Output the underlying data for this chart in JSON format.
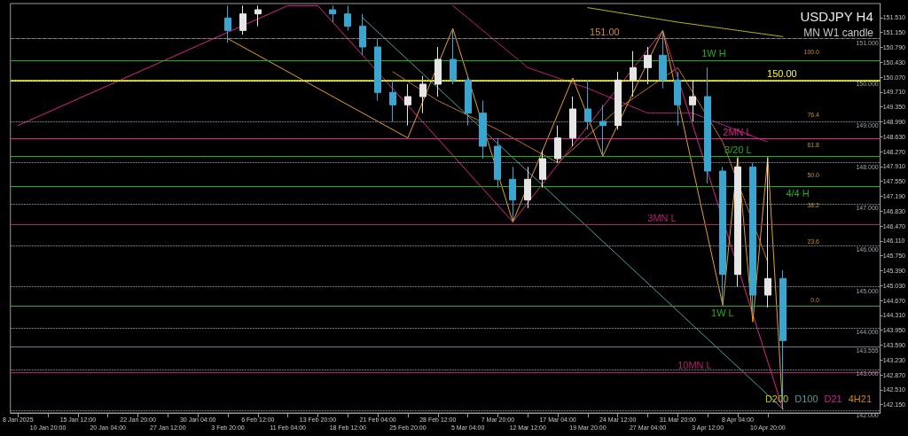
{
  "chart_data": {
    "type": "candlestick",
    "title": "USDJPY H4",
    "subtitle": "MN W1 candle",
    "categories": [
      "8 Jan 2025",
      null,
      "10 Jan 20:00",
      null,
      "15 Jan 12:00",
      null,
      "20 Jan 04:00",
      null,
      "22 Jan 20:00",
      null,
      "27 Jan 12:00",
      null,
      "30 Jan 04:00",
      null,
      "3 Feb 20:00",
      null,
      "6 Feb 12:00",
      null,
      "11 Feb 04:00",
      null,
      "13 Feb 20:00",
      null,
      "18 Feb 12:00",
      null,
      "21 Feb 04:00",
      null,
      "25 Feb 20:00",
      null,
      "28 Feb 12:00",
      null,
      "5 Mar 04:00",
      null,
      "7 Mar 20:00",
      null,
      "12 Mar 12:00",
      null,
      "17 Mar 04:00",
      null,
      "19 Mar 20:00",
      null,
      "24 Mar 12:00",
      null,
      "27 Mar 04:00",
      null,
      "31 Mar 20:00",
      null,
      "3 Apr 12:00",
      null,
      "8 Apr 04:00",
      null,
      "10 Apr 20:00",
      null,
      null,
      null,
      null,
      null,
      null,
      null
    ],
    "ohlc": [
      null,
      null,
      null,
      null,
      null,
      null,
      null,
      null,
      null,
      null,
      null,
      null,
      null,
      null,
      [
        151.5,
        151.8,
        150.9,
        151.2
      ],
      [
        151.2,
        151.8,
        151.1,
        151.6
      ],
      [
        151.6,
        151.8,
        151.3,
        151.7
      ],
      null,
      null,
      null,
      null,
      [
        151.7,
        151.8,
        151.4,
        151.6
      ],
      [
        151.6,
        151.8,
        151.2,
        151.3
      ],
      [
        151.3,
        151.6,
        150.6,
        150.8
      ],
      [
        150.8,
        151.0,
        149.5,
        149.7
      ],
      [
        149.7,
        150.0,
        149.0,
        149.4
      ],
      [
        149.4,
        149.9,
        148.9,
        149.6
      ],
      [
        149.6,
        150.1,
        149.2,
        149.9
      ],
      [
        149.9,
        150.8,
        149.6,
        150.5
      ],
      [
        150.5,
        151.2,
        149.9,
        150.0
      ],
      [
        150.0,
        150.1,
        148.9,
        149.2
      ],
      [
        149.2,
        149.5,
        148.1,
        148.4
      ],
      [
        148.4,
        148.6,
        147.4,
        147.6
      ],
      [
        147.6,
        147.9,
        146.6,
        147.1
      ],
      [
        147.1,
        147.9,
        146.9,
        147.6
      ],
      [
        147.6,
        148.3,
        147.4,
        148.1
      ],
      [
        148.1,
        148.9,
        148.0,
        148.6
      ],
      [
        148.6,
        149.6,
        148.4,
        149.3
      ],
      [
        149.3,
        150.0,
        148.8,
        149.0
      ],
      [
        149.0,
        149.4,
        148.2,
        148.9
      ],
      [
        148.9,
        150.2,
        148.8,
        150.0
      ],
      [
        150.0,
        150.7,
        149.6,
        150.3
      ],
      [
        150.3,
        150.8,
        149.9,
        150.6
      ],
      [
        150.6,
        151.2,
        149.8,
        150.0
      ],
      [
        150.0,
        150.2,
        148.9,
        149.4
      ],
      [
        149.4,
        150.0,
        149.0,
        149.6
      ],
      [
        149.6,
        150.3,
        147.5,
        147.8
      ],
      [
        147.8,
        147.9,
        144.6,
        145.3
      ],
      [
        145.3,
        148.1,
        145.0,
        147.9
      ],
      [
        147.9,
        148.0,
        144.4,
        144.8
      ],
      [
        144.8,
        148.1,
        144.5,
        145.2
      ],
      [
        145.2,
        145.4,
        142.1,
        143.7
      ],
      null,
      null,
      null,
      null,
      null,
      null
    ],
    "colors": [
      null,
      null,
      null,
      null,
      null,
      null,
      null,
      null,
      null,
      null,
      null,
      null,
      null,
      null,
      "#3aa6d0",
      "#e6e6e6",
      "#e6e6e6",
      null,
      null,
      null,
      null,
      "#3aa6d0",
      "#3aa6d0",
      "#3aa6d0",
      "#3aa6d0",
      "#3aa6d0",
      "#e6e6e6",
      "#e6e6e6",
      "#e6e6e6",
      "#3aa6d0",
      "#3aa6d0",
      "#3aa6d0",
      "#3aa6d0",
      "#3aa6d0",
      "#e6e6e6",
      "#e6e6e6",
      "#e6e6e6",
      "#e6e6e6",
      "#3aa6d0",
      "#3aa6d0",
      "#e6e6e6",
      "#e6e6e6",
      "#e6e6e6",
      "#3aa6d0",
      "#3aa6d0",
      "#e6e6e6",
      "#3aa6d0",
      "#3aa6d0",
      "#e6e6e6",
      "#3aa6d0",
      "#e6e6e6",
      "#3aa6d0",
      null,
      null,
      null,
      null,
      null,
      null
    ],
    "ylim": [
      141.95,
      151.85
    ],
    "yticks": [
      {
        "value": 151.51,
        "label": "151.510"
      },
      {
        "value": 151.15,
        "label": "151.150"
      },
      {
        "value": 150.79,
        "label": "150.790"
      },
      {
        "value": 150.43,
        "label": "150.430"
      },
      {
        "value": 150.07,
        "label": "150.070"
      },
      {
        "value": 149.71,
        "label": "149.710"
      },
      {
        "value": 149.35,
        "label": "149.350"
      },
      {
        "value": 148.99,
        "label": "148.990"
      },
      {
        "value": 148.63,
        "label": "148.630"
      },
      {
        "value": 148.27,
        "label": "148.270"
      },
      {
        "value": 147.91,
        "label": "147.910"
      },
      {
        "value": 147.55,
        "label": "147.550"
      },
      {
        "value": 147.19,
        "label": "147.190"
      },
      {
        "value": 146.83,
        "label": "146.830"
      },
      {
        "value": 146.47,
        "label": "146.470"
      },
      {
        "value": 146.11,
        "label": "146.110"
      },
      {
        "value": 145.75,
        "label": "145.750"
      },
      {
        "value": 145.39,
        "label": "145.390"
      },
      {
        "value": 145.03,
        "label": "145.030"
      },
      {
        "value": 144.67,
        "label": "144.670"
      },
      {
        "value": 144.31,
        "label": "144.310"
      },
      {
        "value": 143.95,
        "label": "143.950"
      },
      {
        "value": 143.59,
        "label": "143.590"
      },
      {
        "value": 143.23,
        "label": "143.230"
      },
      {
        "value": 142.87,
        "label": "142.870"
      },
      {
        "value": 142.51,
        "label": "142.510"
      },
      {
        "value": 142.15,
        "label": "142.150"
      }
    ],
    "series": [
      {
        "type": "line",
        "name": "D200",
        "color": "#c8c800",
        "line_style": "dotted",
        "values": [
          null,
          null,
          null,
          null,
          null,
          null,
          null,
          null,
          null,
          null,
          null,
          null,
          null,
          null,
          null,
          null,
          null,
          null,
          null,
          null,
          null,
          null,
          null,
          null,
          null,
          null,
          null,
          null,
          null,
          null,
          null,
          null,
          null,
          null,
          null,
          null,
          null,
          null,
          151.75,
          null,
          null,
          null,
          null,
          null,
          151.4,
          null,
          null,
          null,
          null,
          null,
          null,
          151.05,
          null,
          null,
          null,
          null,
          null,
          null
        ]
      },
      {
        "type": "line",
        "name": "D100",
        "color": "#4aa0a0",
        "line_style": "solid",
        "values": [
          null,
          null,
          null,
          null,
          null,
          null,
          null,
          null,
          null,
          null,
          null,
          null,
          null,
          null,
          null,
          null,
          null,
          null,
          null,
          null,
          null,
          null,
          null,
          151.5,
          null,
          null,
          null,
          null,
          null,
          null,
          null,
          null,
          null,
          null,
          null,
          null,
          null,
          null,
          null,
          null,
          null,
          null,
          null,
          null,
          null,
          null,
          null,
          null,
          null,
          null,
          null,
          142.05,
          null,
          null,
          null,
          null,
          null,
          null
        ]
      },
      {
        "type": "line",
        "name": "D21",
        "color": "#d02090",
        "line_style": "dotted",
        "values": [
          null,
          null,
          null,
          null,
          null,
          null,
          null,
          null,
          null,
          null,
          null,
          null,
          null,
          null,
          null,
          null,
          null,
          null,
          null,
          null,
          null,
          null,
          null,
          null,
          null,
          null,
          null,
          null,
          null,
          151.8,
          null,
          null,
          null,
          null,
          150.3,
          null,
          null,
          null,
          149.8,
          null,
          null,
          null,
          149.2,
          null,
          null,
          149.2,
          null,
          null,
          null,
          null,
          148.5,
          null,
          null,
          null,
          null,
          null,
          null,
          null
        ]
      },
      {
        "type": "line",
        "name": "4H21",
        "color": "#d08020",
        "line_style": "dotted",
        "values": [
          null,
          null,
          null,
          null,
          null,
          null,
          null,
          null,
          null,
          null,
          null,
          null,
          null,
          null,
          null,
          null,
          null,
          null,
          null,
          null,
          null,
          null,
          null,
          null,
          null,
          150.2,
          null,
          null,
          149.5,
          null,
          null,
          null,
          148.8,
          null,
          null,
          null,
          148.0,
          null,
          null,
          null,
          149.3,
          null,
          null,
          null,
          150.3,
          null,
          null,
          148.5,
          null,
          null,
          145.6,
          null,
          null,
          null,
          null,
          null,
          null,
          null
        ]
      },
      {
        "type": "line",
        "color": "#e0208c",
        "line_style": "solid",
        "values": [
          148.9,
          null,
          null,
          null,
          null,
          null,
          null,
          null,
          null,
          null,
          null,
          null,
          null,
          null,
          null,
          null,
          null,
          null,
          151.8,
          null,
          151.8,
          null,
          null,
          null,
          null,
          null,
          null,
          null,
          null,
          null,
          null,
          null,
          null,
          146.57,
          null,
          null,
          null,
          null,
          null,
          null,
          null,
          null,
          null,
          151.2,
          null,
          null,
          null,
          null,
          null,
          null,
          null,
          142.05,
          null,
          null,
          null,
          null,
          null,
          null
        ]
      },
      {
        "type": "line",
        "color": "#e8a020",
        "line_style": "solid",
        "values": [
          null,
          null,
          null,
          null,
          null,
          null,
          null,
          null,
          null,
          null,
          null,
          null,
          null,
          null,
          151.0,
          null,
          null,
          null,
          null,
          null,
          null,
          null,
          null,
          null,
          null,
          null,
          148.6,
          null,
          null,
          151.25,
          null,
          null,
          null,
          146.57,
          null,
          null,
          null,
          150.05,
          null,
          148.16,
          null,
          null,
          null,
          151.2,
          null,
          null,
          null,
          144.55,
          148.14,
          144.15,
          148.14,
          142.04,
          null,
          null,
          null,
          null,
          null,
          null
        ]
      }
    ],
    "ref_lines": [
      {
        "axis": "y",
        "value": 151.0,
        "label": "151.00",
        "color": "#d08c28",
        "line_style": "dashed"
      },
      {
        "axis": "y",
        "value": 150.48,
        "label": "1W H",
        "color": "#1fae1f",
        "line_style": "solid"
      },
      {
        "axis": "y",
        "value": 150.0,
        "label": "150.00",
        "color": "#ffff00",
        "line_style": "solid"
      },
      {
        "axis": "y",
        "value": 148.58,
        "label": "2MN L",
        "color": "#e0208c",
        "line_style": "solid"
      },
      {
        "axis": "y",
        "value": 148.16,
        "label": "3/20 L",
        "color": "#1fae1f",
        "line_style": "solid"
      },
      {
        "axis": "y",
        "value": 147.42,
        "label": "4/4 H",
        "color": "#1fae1f",
        "line_style": "solid"
      },
      {
        "axis": "y",
        "value": 146.51,
        "label": "3MN L",
        "color": "#b0206c",
        "line_style": "solid"
      },
      {
        "axis": "y",
        "value": 144.53,
        "label": "1W L",
        "color": "#1fae1f",
        "line_style": "solid"
      },
      {
        "axis": "y",
        "value": 142.94,
        "label": "10MN L",
        "color": "#b0206c",
        "line_style": "solid"
      },
      {
        "axis": "y",
        "value": 151.0,
        "label": "151.000",
        "color": "#6e7a84",
        "line_style": "dotted"
      },
      {
        "axis": "y",
        "value": 150.0,
        "label": "150.000",
        "color": "#6e7a84",
        "line_style": "dotted"
      },
      {
        "axis": "y",
        "value": 149.0,
        "label": "149.000",
        "color": "#6e7a84",
        "line_style": "dotted"
      },
      {
        "axis": "y",
        "value": 148.0,
        "label": "148.000",
        "color": "#6e7a84",
        "line_style": "dotted"
      },
      {
        "axis": "y",
        "value": 147.0,
        "label": "147.000",
        "color": "#6e7a84",
        "line_style": "dotted"
      },
      {
        "axis": "y",
        "value": 146.0,
        "label": "146.000",
        "color": "#6e7a84",
        "line_style": "dotted"
      },
      {
        "axis": "y",
        "value": 145.0,
        "label": "145.000",
        "color": "#6e7a84",
        "line_style": "dotted"
      },
      {
        "axis": "y",
        "value": 144.0,
        "label": "144.000",
        "color": "#6e7a84",
        "line_style": "dotted"
      },
      {
        "axis": "y",
        "value": 143.555,
        "label": "143.555",
        "color": "#6e7a84",
        "line_style": "solid"
      },
      {
        "axis": "y",
        "value": 143.0,
        "label": "143.000",
        "color": "#6e7a84",
        "line_style": "dotted"
      },
      {
        "axis": "y",
        "value": 142.0,
        "label": "142.000",
        "color": "#6e7a84",
        "line_style": "dotted"
      }
    ],
    "annotations": [
      "100.0",
      "76.4",
      "61.8",
      "50.0",
      "38.2",
      "23.6",
      "0.0"
    ],
    "legend": "bottom right",
    "marker": "none",
    "grid": false
  }
}
